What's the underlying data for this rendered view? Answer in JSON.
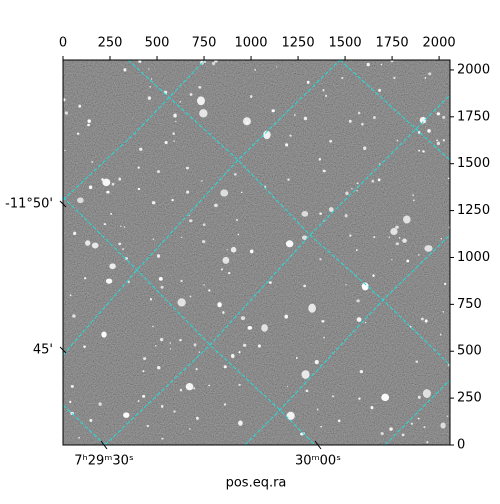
{
  "chart_data": {
    "type": "image",
    "xlabel": "pos.eq.ra",
    "xlim": [
      0,
      2058
    ],
    "xticks": [
      0,
      250,
      500,
      750,
      1000,
      1250,
      1500,
      1750,
      2000
    ],
    "ylim": [
      0,
      2053
    ],
    "yticks": [
      0,
      250,
      500,
      750,
      1000,
      1250,
      1500,
      1750,
      2000
    ],
    "ra_ticks": [
      {
        "value": 218,
        "label": "7ʰ29ᵐ30ˢ"
      },
      {
        "value": 1356,
        "label": "30ᵐ00ˢ"
      }
    ],
    "dec_ticks": [
      {
        "value": 1285,
        "label": "-11°50'"
      },
      {
        "value": 507,
        "label": "45'"
      }
    ],
    "grid_color": "#22dddd"
  }
}
